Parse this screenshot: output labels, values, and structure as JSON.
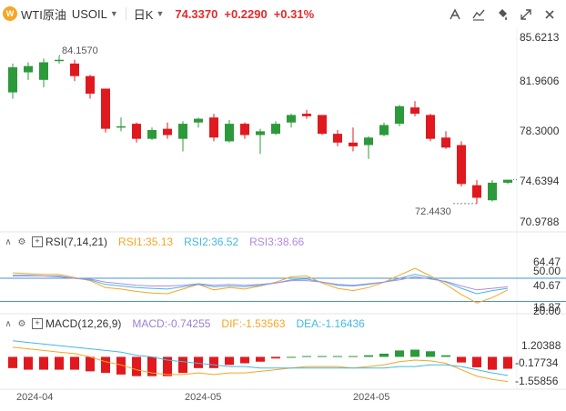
{
  "header": {
    "logo_text": "W",
    "symbol_name": "WTI原油",
    "symbol_code": "USOIL",
    "timeframe": "日K",
    "price": "74.3370",
    "change": "+0.2290",
    "change_pct": "+0.31%",
    "tool_icons": [
      "draw-tool-icon",
      "indicator-tool-icon",
      "bucket-tool-icon",
      "expand-icon",
      "close-icon"
    ]
  },
  "price_axis": [
    "85.6213",
    "81.9606",
    "78.3000",
    "74.6394",
    "70.9788"
  ],
  "price_range": [
    70.9788,
    85.6213
  ],
  "high_label": "84.1570",
  "low_label": "72.4430",
  "rsi": {
    "name": "RSI(7,14,21)",
    "v1": "RSI1:35.13",
    "v2": "RSI2:36.52",
    "v3": "RSI3:38.66",
    "axis": [
      "64.47",
      "50.00",
      "40.67",
      "16.87",
      "20.00"
    ],
    "range": [
      10,
      76
    ],
    "levels": [
      50,
      20
    ],
    "colors": [
      "#f5a623",
      "#44b8e0",
      "#b18ae0"
    ]
  },
  "macd": {
    "name": "MACD(12,26,9)",
    "macd_val": "MACD:-0.74255",
    "dif_val": "DIF:-1.53563",
    "dea_val": "DEA:-1.16436",
    "axis": [
      "1.20388",
      "-0.17734",
      "-1.55856"
    ],
    "range": [
      -1.9,
      1.5
    ],
    "colors": {
      "macd": "#9b7fd6",
      "dif": "#f5a623",
      "dea": "#44b8e0"
    }
  },
  "dates": [
    "2024-04",
    "2024-05",
    "2024-05"
  ],
  "colors": {
    "up": "#2c9a3a",
    "down": "#e0191f",
    "line": "#4a90d9"
  },
  "chart_data": {
    "type": "candlestick",
    "candles": [
      {
        "o": 81.3,
        "h": 83.6,
        "l": 80.8,
        "c": 83.3
      },
      {
        "o": 82.9,
        "h": 83.7,
        "l": 82.3,
        "c": 83.4
      },
      {
        "o": 82.3,
        "h": 84.0,
        "l": 81.7,
        "c": 83.7
      },
      {
        "o": 83.8,
        "h": 84.16,
        "l": 83.6,
        "c": 83.9
      },
      {
        "o": 83.6,
        "h": 83.9,
        "l": 82.2,
        "c": 82.6
      },
      {
        "o": 82.6,
        "h": 82.7,
        "l": 80.8,
        "c": 81.2
      },
      {
        "o": 81.6,
        "h": 81.6,
        "l": 78.1,
        "c": 78.4
      },
      {
        "o": 78.6,
        "h": 79.3,
        "l": 78.2,
        "c": 78.6
      },
      {
        "o": 78.8,
        "h": 78.9,
        "l": 77.3,
        "c": 77.6
      },
      {
        "o": 77.6,
        "h": 78.5,
        "l": 77.5,
        "c": 78.3
      },
      {
        "o": 78.4,
        "h": 78.9,
        "l": 77.6,
        "c": 77.9
      },
      {
        "o": 77.6,
        "h": 79.0,
        "l": 76.6,
        "c": 78.8
      },
      {
        "o": 78.9,
        "h": 79.3,
        "l": 78.5,
        "c": 79.2
      },
      {
        "o": 79.3,
        "h": 79.6,
        "l": 77.4,
        "c": 77.7
      },
      {
        "o": 77.4,
        "h": 79.1,
        "l": 77.3,
        "c": 78.8
      },
      {
        "o": 78.8,
        "h": 78.9,
        "l": 77.6,
        "c": 77.9
      },
      {
        "o": 77.9,
        "h": 78.4,
        "l": 76.4,
        "c": 78.2
      },
      {
        "o": 78.0,
        "h": 79.0,
        "l": 77.9,
        "c": 78.8
      },
      {
        "o": 78.9,
        "h": 79.6,
        "l": 78.5,
        "c": 79.5
      },
      {
        "o": 79.6,
        "h": 79.9,
        "l": 79.2,
        "c": 79.4
      },
      {
        "o": 79.5,
        "h": 79.5,
        "l": 77.9,
        "c": 78.0
      },
      {
        "o": 78.0,
        "h": 78.3,
        "l": 77.0,
        "c": 77.3
      },
      {
        "o": 77.3,
        "h": 78.5,
        "l": 76.6,
        "c": 77.0
      },
      {
        "o": 77.1,
        "h": 77.8,
        "l": 76.0,
        "c": 77.7
      },
      {
        "o": 77.9,
        "h": 78.9,
        "l": 77.8,
        "c": 78.7
      },
      {
        "o": 78.8,
        "h": 80.3,
        "l": 78.6,
        "c": 80.2
      },
      {
        "o": 80.1,
        "h": 80.6,
        "l": 79.4,
        "c": 79.6
      },
      {
        "o": 79.5,
        "h": 79.6,
        "l": 77.4,
        "c": 77.6
      },
      {
        "o": 77.7,
        "h": 78.2,
        "l": 76.8,
        "c": 76.9
      },
      {
        "o": 77.1,
        "h": 77.4,
        "l": 73.8,
        "c": 74.0
      },
      {
        "o": 73.9,
        "h": 74.3,
        "l": 72.44,
        "c": 72.9
      },
      {
        "o": 72.7,
        "h": 74.3,
        "l": 72.6,
        "c": 74.1
      },
      {
        "o": 74.1,
        "h": 74.34,
        "l": 74.0,
        "c": 74.34
      }
    ],
    "rsi1": [
      57,
      56,
      55,
      55,
      51,
      47,
      38,
      36,
      33,
      31,
      30,
      36,
      42,
      35,
      38,
      36,
      40,
      45,
      52,
      53,
      44,
      37,
      34,
      38,
      45,
      54,
      63,
      53,
      42,
      29,
      18,
      25,
      35
    ],
    "rsi2": [
      54,
      54,
      53,
      53,
      50,
      48,
      42,
      40,
      38,
      37,
      36,
      39,
      42,
      39,
      40,
      39,
      41,
      44,
      48,
      49,
      45,
      41,
      40,
      42,
      45,
      50,
      55,
      51,
      45,
      37,
      30,
      34,
      37
    ],
    "rsi3": [
      53,
      53,
      53,
      52,
      50,
      49,
      45,
      43,
      41,
      40,
      40,
      41,
      43,
      41,
      42,
      41,
      42,
      44,
      47,
      47,
      45,
      42,
      41,
      43,
      45,
      48,
      52,
      49,
      46,
      40,
      35,
      37,
      39
    ],
    "macd_hist": [
      -0.7,
      -0.8,
      -0.8,
      -0.8,
      -0.8,
      -0.9,
      -1.0,
      -1.1,
      -1.2,
      -1.2,
      -1.2,
      -1.0,
      -0.7,
      -0.7,
      -0.5,
      -0.4,
      -0.3,
      -0.1,
      0.0,
      0.05,
      0.05,
      0.05,
      0.05,
      0.1,
      0.2,
      0.4,
      0.45,
      0.35,
      0.1,
      -0.35,
      -0.65,
      -0.8,
      -0.74
    ],
    "dif": [
      0.6,
      0.5,
      0.4,
      0.3,
      0.2,
      0.0,
      -0.3,
      -0.5,
      -0.8,
      -1.0,
      -1.1,
      -1.1,
      -1.0,
      -1.1,
      -1.0,
      -1.0,
      -0.9,
      -0.8,
      -0.7,
      -0.6,
      -0.6,
      -0.6,
      -0.7,
      -0.6,
      -0.5,
      -0.3,
      -0.2,
      -0.25,
      -0.4,
      -0.8,
      -1.2,
      -1.4,
      -1.54
    ],
    "dea": [
      1.0,
      0.9,
      0.8,
      0.7,
      0.6,
      0.5,
      0.4,
      0.3,
      0.1,
      0.0,
      -0.2,
      -0.3,
      -0.4,
      -0.5,
      -0.6,
      -0.6,
      -0.7,
      -0.7,
      -0.7,
      -0.7,
      -0.7,
      -0.7,
      -0.7,
      -0.7,
      -0.7,
      -0.6,
      -0.6,
      -0.5,
      -0.5,
      -0.6,
      -0.8,
      -1.0,
      -1.16
    ]
  }
}
